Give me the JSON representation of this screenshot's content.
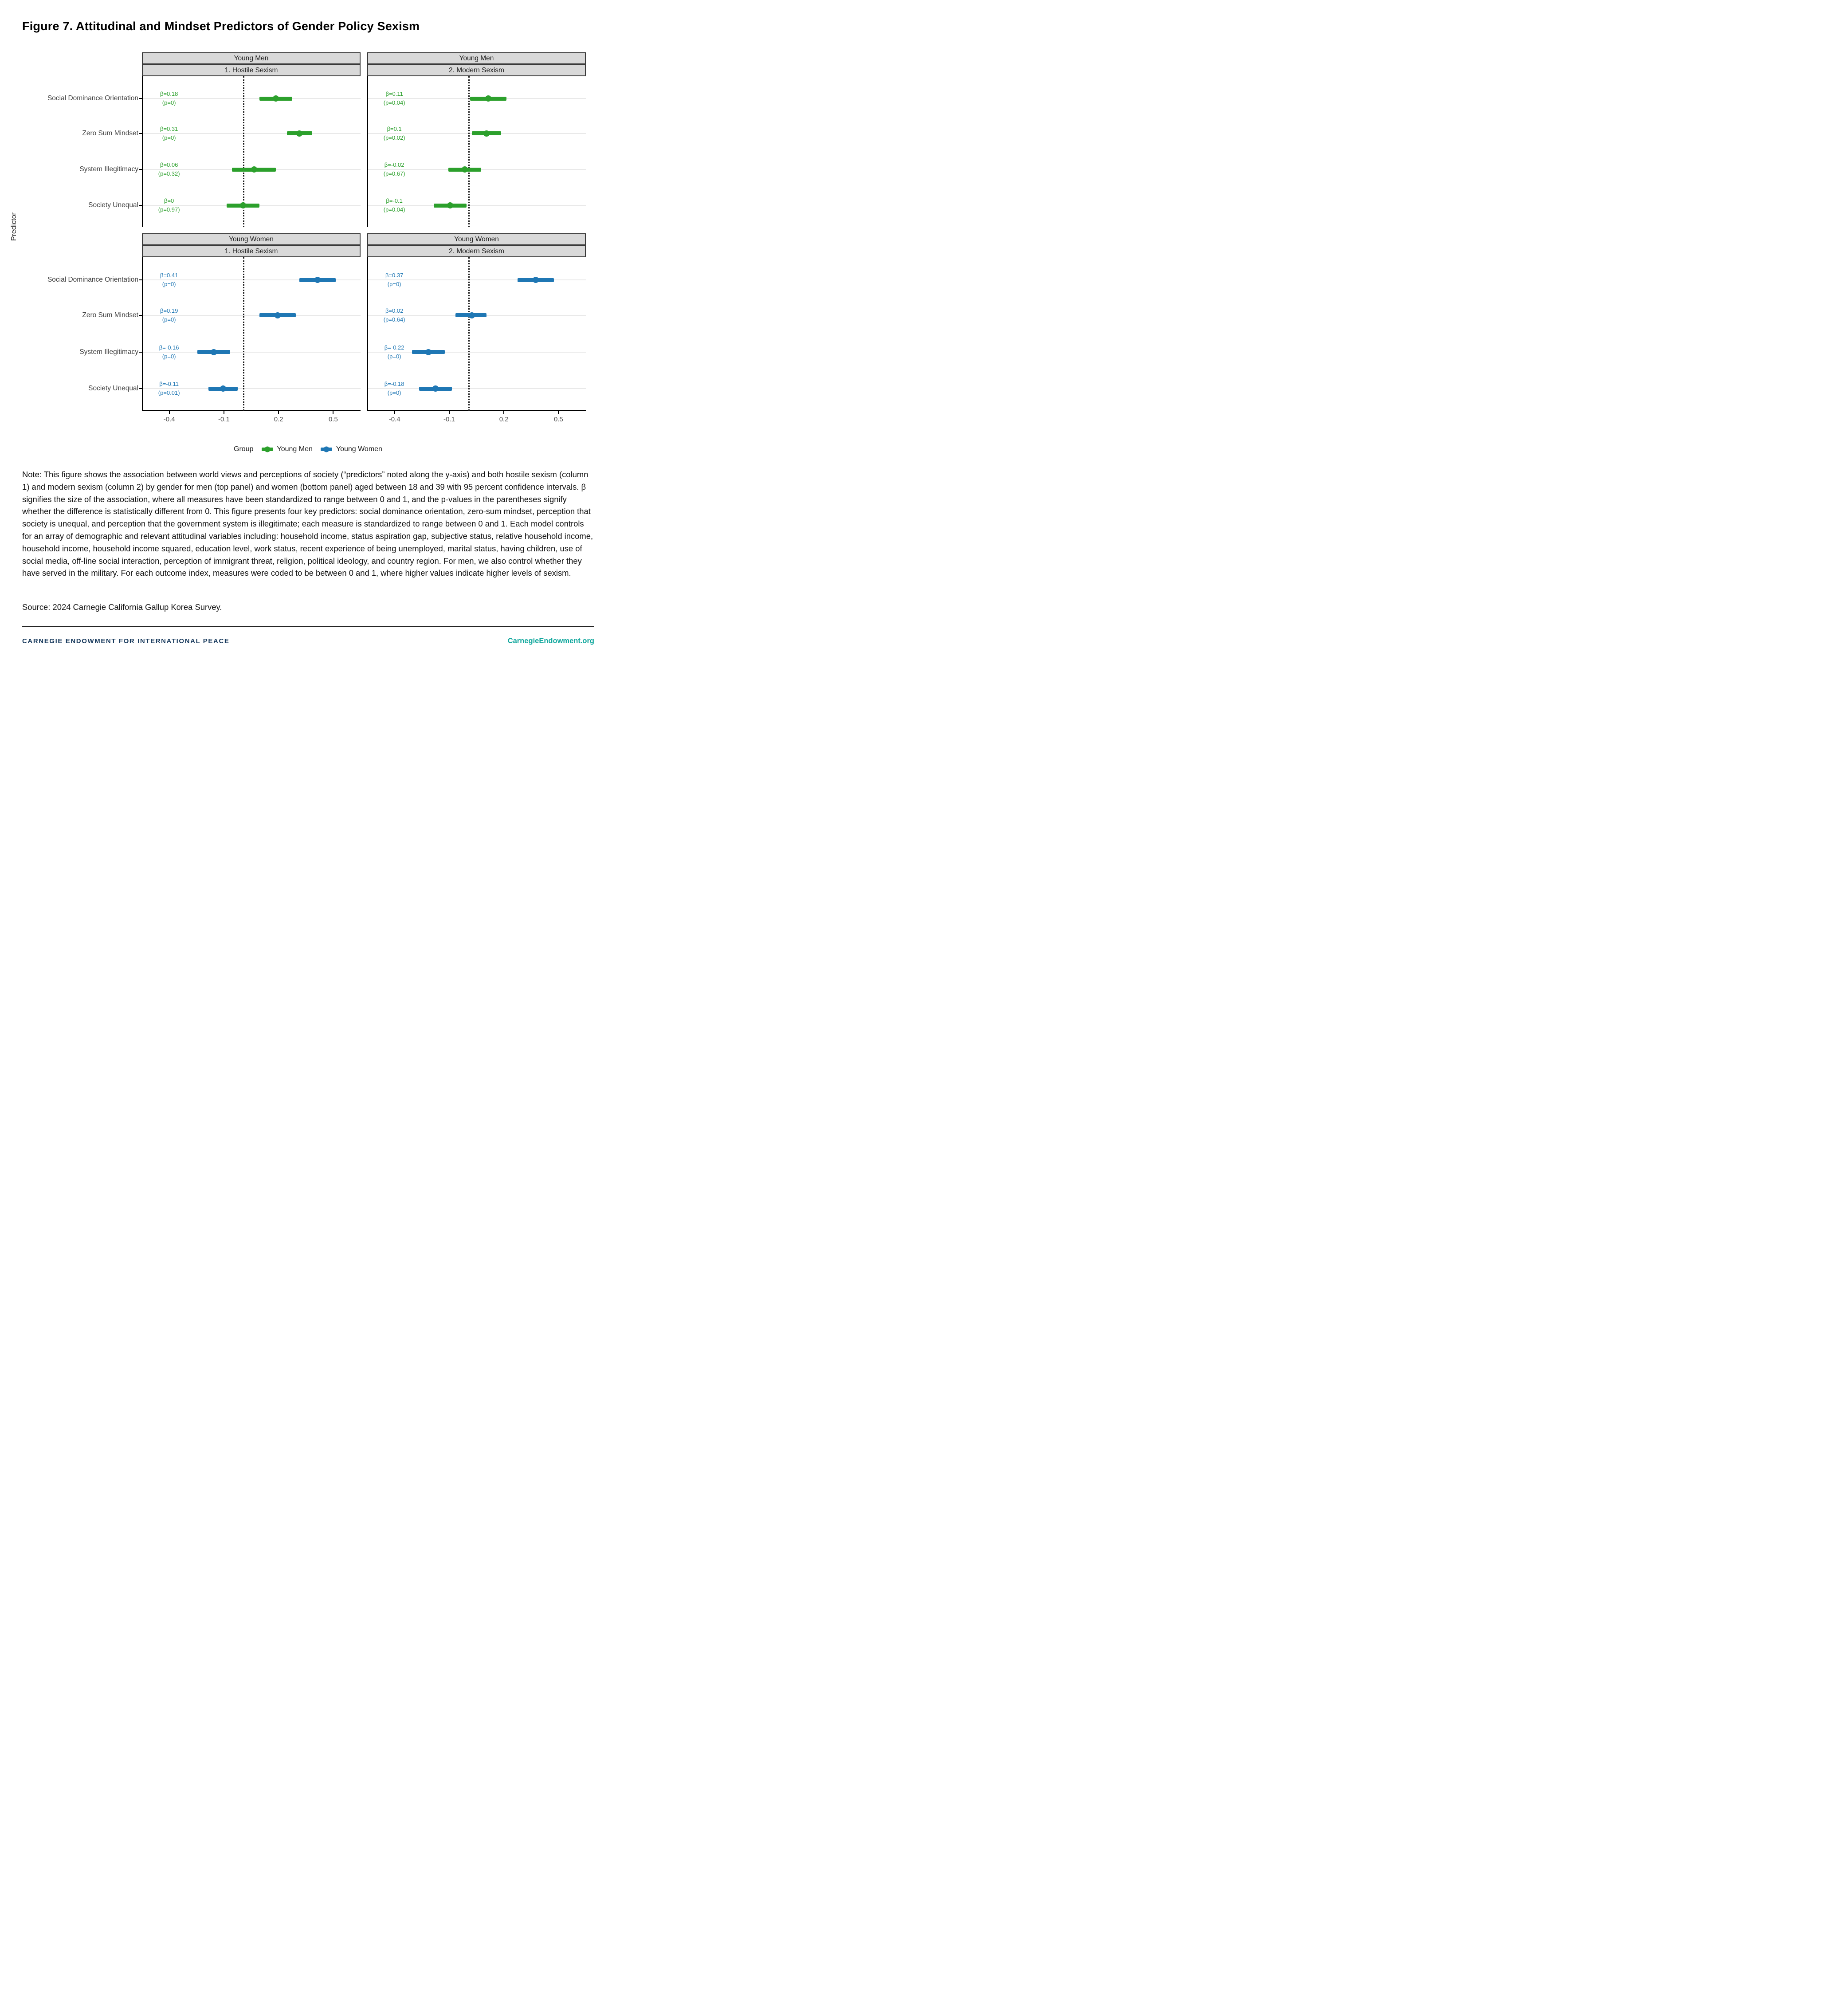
{
  "page": {
    "title": "Figure 7. Attitudinal and Mindset Predictors of Gender Policy Sexism",
    "note": "Note: This figure shows the association between world views and perceptions of society (“predictors” noted along the y-axis) and both hostile sexism (column 1) and modern sexism (column 2) by gender for men (top panel) and women (bottom panel) aged between 18 and 39 with 95 percent confidence intervals. β signifies the size of the association, where all measures have been standardized to range between 0 and 1, and the p-values in the parentheses signify whether the difference is statistically different from 0. This figure presents four key predictors: social dominance orientation, zero-sum mindset, perception that society is unequal, and perception that the government system is illegitimate; each measure is standardized to range between 0 and 1. Each model controls for an array of demographic and relevant attitudinal variables including: household income, status aspiration gap, subjective status, relative household income, household income, household income squared, education level, work status, recent experience of being unemployed, marital status, having children, use of social media, off-line social interaction, perception of immigrant threat, religion, political ideology, and country region. For men, we also control whether they have served in the military. For each outcome index, measures were coded to be between 0 and 1, where higher values indicate higher levels of sexism.",
    "source": "Source: 2024 Carnegie California Gallup Korea Survey.",
    "footer": {
      "left": "CARNEGIE ENDOWMENT FOR INTERNATIONAL PEACE",
      "right": "CarnegieEndowment.org",
      "left_color": "#17395C",
      "right_color": "#13A89E"
    }
  },
  "colors": {
    "strip_bg": "#D9D9D9",
    "strip_border": "#3a3a3a",
    "grid": "#E9E9E9",
    "axis": "#000000",
    "tick_text": "#4D4D4D",
    "young_men": "#2CA02C",
    "young_women": "#1F77B4"
  },
  "chart_data": {
    "type": "pointrange-forest",
    "ylabel": "Predictor",
    "predictors": [
      "Social Dominance Orientation",
      "Zero Sum Mindset",
      "System Illegitimacy",
      "Society Unequal"
    ],
    "x_axis": {
      "min": -0.55,
      "max": 0.65,
      "ticks": [
        -0.4,
        -0.1,
        0.2,
        0.5
      ],
      "tick_labels": [
        "-0.4",
        "-0.1",
        "0.2",
        "0.5"
      ],
      "zero_line": 0,
      "grid": "horizontal-only"
    },
    "facets": {
      "row_labels": [
        "Young Men",
        "Young Women"
      ],
      "col_labels": [
        "1. Hostile Sexism",
        "2. Modern Sexism"
      ]
    },
    "legend": {
      "title": "Group",
      "position": "bottom",
      "items": [
        {
          "label": "Young Men",
          "color": "#2CA02C"
        },
        {
          "label": "Young Women",
          "color": "#1F77B4"
        }
      ]
    },
    "panels": [
      {
        "row": 0,
        "col": 0,
        "group": "Young Men",
        "outcome": "1. Hostile Sexism",
        "color": "#2CA02C",
        "points": [
          {
            "predictor": "Social Dominance Orientation",
            "beta": 0.18,
            "ci": [
              0.09,
              0.27
            ],
            "beta_label": "β=0.18",
            "p_label": "(p=0)"
          },
          {
            "predictor": "Zero Sum Mindset",
            "beta": 0.31,
            "ci": [
              0.24,
              0.38
            ],
            "beta_label": "β=0.31",
            "p_label": "(p=0)"
          },
          {
            "predictor": "System Illegitimacy",
            "beta": 0.06,
            "ci": [
              -0.06,
              0.18
            ],
            "beta_label": "β=0.06",
            "p_label": "(p=0.32)"
          },
          {
            "predictor": "Society Unequal",
            "beta": 0.0,
            "ci": [
              -0.09,
              0.09
            ],
            "beta_label": "β=0",
            "p_label": "(p=0.97)"
          }
        ]
      },
      {
        "row": 0,
        "col": 1,
        "group": "Young Men",
        "outcome": "2. Modern Sexism",
        "color": "#2CA02C",
        "points": [
          {
            "predictor": "Social Dominance Orientation",
            "beta": 0.11,
            "ci": [
              0.01,
              0.21
            ],
            "beta_label": "β=0.11",
            "p_label": "(p=0.04)"
          },
          {
            "predictor": "Zero Sum Mindset",
            "beta": 0.1,
            "ci": [
              0.02,
              0.18
            ],
            "beta_label": "β=0.1",
            "p_label": "(p=0.02)"
          },
          {
            "predictor": "System Illegitimacy",
            "beta": -0.02,
            "ci": [
              -0.11,
              0.07
            ],
            "beta_label": "β=-0.02",
            "p_label": "(p=0.67)"
          },
          {
            "predictor": "Society Unequal",
            "beta": -0.1,
            "ci": [
              -0.19,
              -0.01
            ],
            "beta_label": "β=-0.1",
            "p_label": "(p=0.04)"
          }
        ]
      },
      {
        "row": 1,
        "col": 0,
        "group": "Young Women",
        "outcome": "1. Hostile Sexism",
        "color": "#1F77B4",
        "points": [
          {
            "predictor": "Social Dominance Orientation",
            "beta": 0.41,
            "ci": [
              0.31,
              0.51
            ],
            "beta_label": "β=0.41",
            "p_label": "(p=0)"
          },
          {
            "predictor": "Zero Sum Mindset",
            "beta": 0.19,
            "ci": [
              0.09,
              0.29
            ],
            "beta_label": "β=0.19",
            "p_label": "(p=0)"
          },
          {
            "predictor": "System Illegitimacy",
            "beta": -0.16,
            "ci": [
              -0.25,
              -0.07
            ],
            "beta_label": "β=-0.16",
            "p_label": "(p=0)"
          },
          {
            "predictor": "Society Unequal",
            "beta": -0.11,
            "ci": [
              -0.19,
              -0.03
            ],
            "beta_label": "β=-0.11",
            "p_label": "(p=0.01)"
          }
        ]
      },
      {
        "row": 1,
        "col": 1,
        "group": "Young Women",
        "outcome": "2. Modern Sexism",
        "color": "#1F77B4",
        "points": [
          {
            "predictor": "Social Dominance Orientation",
            "beta": 0.37,
            "ci": [
              0.27,
              0.47
            ],
            "beta_label": "β=0.37",
            "p_label": "(p=0)"
          },
          {
            "predictor": "Zero Sum Mindset",
            "beta": 0.02,
            "ci": [
              -0.07,
              0.1
            ],
            "beta_label": "β=0.02",
            "p_label": "(p=0.64)"
          },
          {
            "predictor": "System Illegitimacy",
            "beta": -0.22,
            "ci": [
              -0.31,
              -0.13
            ],
            "beta_label": "β=-0.22",
            "p_label": "(p=0)"
          },
          {
            "predictor": "Society Unequal",
            "beta": -0.18,
            "ci": [
              -0.27,
              -0.09
            ],
            "beta_label": "β=-0.18",
            "p_label": "(p=0)"
          }
        ]
      }
    ]
  }
}
